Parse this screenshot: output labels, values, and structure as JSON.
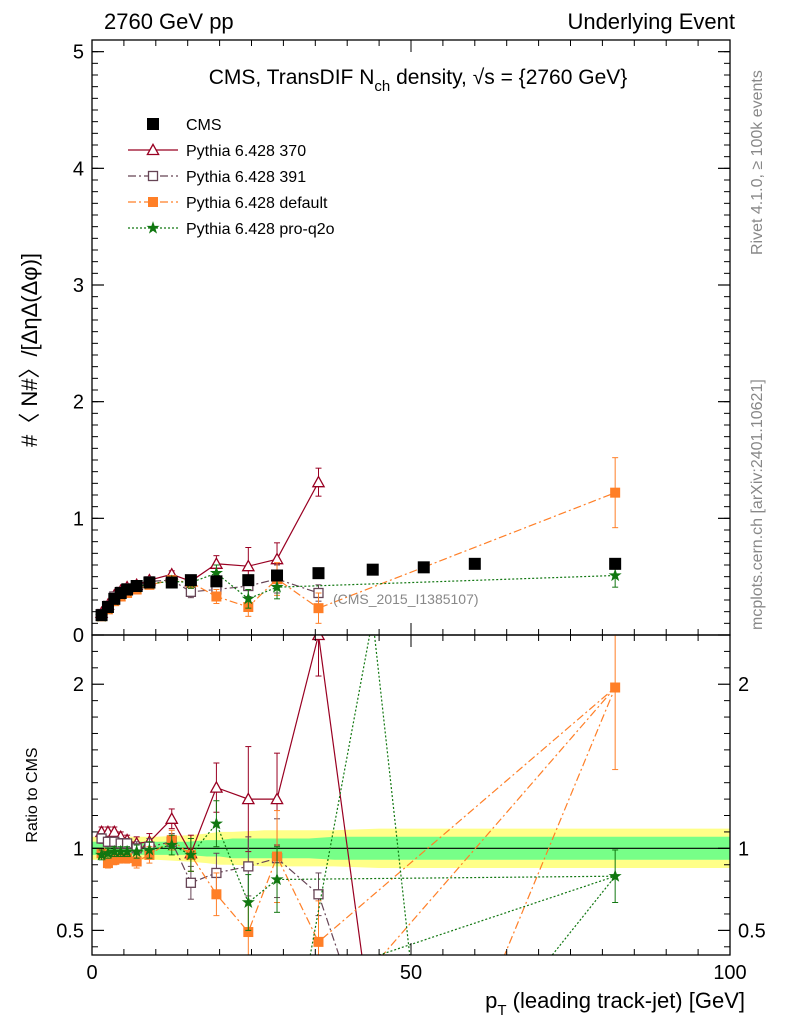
{
  "header": {
    "left": "2760 GeV pp",
    "right": "Underlying Event"
  },
  "side_labels": {
    "rivet": "Rivet 4.1.0, ≥ 100k events",
    "mcplots": "mcplots.cern.ch [arXiv:2401.10621]"
  },
  "chart_data": {
    "type": "scatter",
    "title_parts": {
      "pre": "CMS, TransDIF N",
      "sub": "ch",
      "mid": " density, ",
      "sqrt": "√s",
      "post": " = {2760 GeV}"
    },
    "xlabel_main": "p",
    "xlabel_sub": "T",
    "xlabel_rest": " (leading track-jet) [GeV]",
    "ylabel": "#〈 N#〉/[ΔηΔ(Δφ)]",
    "ratio_ylabel": "Ratio to CMS",
    "reference_label": "(CMS_2015_I1385107)",
    "xlim": [
      0,
      100
    ],
    "ylim": [
      0,
      5.1
    ],
    "ratio_ylim": [
      0.35,
      2.3
    ],
    "x_ticks": [
      0,
      50,
      100
    ],
    "y_ticks": [
      0,
      1,
      2,
      3,
      4,
      5
    ],
    "ratio_ticks": [
      0.5,
      1,
      2
    ],
    "ratio_tick_labels": [
      "0.5",
      "1",
      "2"
    ],
    "legend": [
      {
        "name": "CMS",
        "marker": "square-filled",
        "color": "#000000",
        "dash": ""
      },
      {
        "name": "Pythia 6.428 370",
        "marker": "triangle-open",
        "color": "#990022",
        "dash": ""
      },
      {
        "name": "Pythia 6.428 391",
        "marker": "square-open",
        "color": "#664455",
        "dash": "8,3,2,3"
      },
      {
        "name": "Pythia 6.428 default",
        "marker": "square-filled",
        "color": "#ff7f27",
        "dash": "8,3,2,3"
      },
      {
        "name": "Pythia 6.428 pro-q2o",
        "marker": "star",
        "color": "#117711",
        "dash": "2,2"
      }
    ],
    "data": {
      "x": [
        1.5,
        2.5,
        3.5,
        4.5,
        5.5,
        7.0,
        9.0,
        12.5,
        15.5,
        19.5,
        24.5,
        29.0,
        35.5,
        44.0,
        52.0,
        60.0,
        82.0
      ],
      "y": [
        0.17,
        0.24,
        0.31,
        0.36,
        0.39,
        0.42,
        0.45,
        0.45,
        0.47,
        0.46,
        0.47,
        0.51,
        0.53,
        0.56,
        0.58,
        0.61,
        0.61
      ],
      "err": [
        0.01,
        0.01,
        0.01,
        0.01,
        0.01,
        0.01,
        0.01,
        0.01,
        0.01,
        0.01,
        0.01,
        0.02,
        0.02,
        0.02,
        0.02,
        0.02,
        0.02
      ]
    },
    "series": [
      {
        "name": "Pythia 6.428 370",
        "color": "#990022",
        "x": [
          1.5,
          2.5,
          3.5,
          4.5,
          5.5,
          7.0,
          9.0,
          12.5,
          15.5,
          19.5,
          24.5,
          29.0,
          35.5
        ],
        "y": [
          0.19,
          0.26,
          0.34,
          0.38,
          0.41,
          0.43,
          0.47,
          0.52,
          0.46,
          0.61,
          0.59,
          0.65,
          1.31
        ],
        "err": [
          0.01,
          0.01,
          0.01,
          0.01,
          0.01,
          0.02,
          0.02,
          0.03,
          0.05,
          0.07,
          0.16,
          0.14,
          0.12
        ],
        "ratio": [
          1.1,
          1.1,
          1.1,
          1.07,
          1.05,
          1.03,
          1.04,
          1.18,
          0.97,
          1.37,
          1.3,
          1.3,
          2.3
        ],
        "ratio_err": [
          0.03,
          0.03,
          0.03,
          0.03,
          0.03,
          0.04,
          0.05,
          0.06,
          0.11,
          0.15,
          0.32,
          0.28,
          0.25
        ],
        "ratio_tail": [
          [
            35.5,
            2.3
          ],
          [
            43.0,
            0.15
          ]
        ]
      },
      {
        "name": "Pythia 6.428 391",
        "color": "#664455",
        "x": [
          1.5,
          2.5,
          3.5,
          4.5,
          5.5,
          7.0,
          9.0,
          12.5,
          15.5,
          19.5,
          24.5,
          29.0,
          35.5
        ],
        "y": [
          0.18,
          0.25,
          0.33,
          0.37,
          0.4,
          0.42,
          0.46,
          0.47,
          0.37,
          0.39,
          0.42,
          0.48,
          0.36
        ],
        "err": [
          0.01,
          0.01,
          0.01,
          0.01,
          0.01,
          0.02,
          0.02,
          0.02,
          0.05,
          0.06,
          0.09,
          0.12,
          0.07
        ],
        "ratio": [
          1.06,
          1.04,
          1.04,
          1.03,
          1.03,
          1.0,
          1.01,
          1.04,
          0.79,
          0.85,
          0.89,
          0.94,
          0.72
        ],
        "ratio_err": [
          0.03,
          0.03,
          0.03,
          0.03,
          0.03,
          0.04,
          0.05,
          0.05,
          0.1,
          0.12,
          0.18,
          0.24,
          0.13
        ],
        "ratio_tail": [
          [
            35.5,
            0.72
          ],
          [
            40.0,
            0.2
          ]
        ]
      },
      {
        "name": "Pythia 6.428 default",
        "color": "#ff7f27",
        "x": [
          1.5,
          2.5,
          3.5,
          4.5,
          5.5,
          7.0,
          9.0,
          12.5,
          15.5,
          19.5,
          24.5,
          29.0,
          35.5,
          82.0
        ],
        "y": [
          0.16,
          0.22,
          0.29,
          0.33,
          0.36,
          0.39,
          0.43,
          0.47,
          0.45,
          0.33,
          0.24,
          0.48,
          0.23,
          1.22
        ],
        "err": [
          0.01,
          0.01,
          0.01,
          0.01,
          0.01,
          0.02,
          0.02,
          0.03,
          0.05,
          0.06,
          0.08,
          0.14,
          0.13,
          0.3
        ],
        "ratio": [
          0.97,
          0.91,
          0.93,
          0.94,
          0.94,
          0.92,
          0.96,
          1.05,
          0.96,
          0.72,
          0.49,
          0.95,
          0.43,
          1.98
        ],
        "ratio_err": [
          0.03,
          0.03,
          0.03,
          0.03,
          0.03,
          0.04,
          0.05,
          0.06,
          0.1,
          0.13,
          0.17,
          0.28,
          0.25,
          0.5
        ],
        "ratio_tail": [
          [
            35.5,
            0.43
          ],
          [
            40.0,
            0.1
          ],
          [
            62.0,
            0.1
          ],
          [
            82.0,
            1.98
          ]
        ]
      },
      {
        "name": "Pythia 6.428 pro-q2o",
        "color": "#117711",
        "x": [
          1.5,
          2.5,
          3.5,
          4.5,
          5.5,
          7.0,
          9.0,
          12.5,
          15.5,
          19.5,
          24.5,
          29.0,
          82.0
        ],
        "y": [
          0.16,
          0.23,
          0.3,
          0.35,
          0.38,
          0.41,
          0.44,
          0.46,
          0.45,
          0.53,
          0.31,
          0.41,
          0.51
        ],
        "err": [
          0.01,
          0.01,
          0.01,
          0.01,
          0.01,
          0.02,
          0.02,
          0.03,
          0.05,
          0.07,
          0.08,
          0.1,
          0.1
        ],
        "ratio": [
          0.96,
          0.97,
          0.98,
          0.98,
          0.98,
          0.98,
          0.99,
          1.02,
          0.96,
          1.15,
          0.67,
          0.81,
          0.83
        ],
        "ratio_err": [
          0.03,
          0.03,
          0.03,
          0.03,
          0.03,
          0.04,
          0.05,
          0.06,
          0.1,
          0.14,
          0.17,
          0.2,
          0.16
        ],
        "ratio_tail": [
          [
            29.0,
            0.81
          ],
          [
            33.5,
            0.2
          ],
          [
            44.0,
            2.4
          ],
          [
            50.5,
            0.1
          ],
          [
            67.0,
            0.1
          ],
          [
            82.0,
            0.83
          ]
        ]
      }
    ],
    "band": {
      "x": [
        0,
        1,
        2,
        3,
        5,
        8,
        10,
        15,
        18,
        20,
        22,
        27,
        30,
        34,
        38,
        45,
        55,
        65,
        75,
        85,
        100
      ],
      "inner": [
        0.04,
        0.04,
        0.04,
        0.04,
        0.04,
        0.04,
        0.04,
        0.04,
        0.05,
        0.05,
        0.06,
        0.06,
        0.06,
        0.06,
        0.07,
        0.07,
        0.07,
        0.07,
        0.07,
        0.07,
        0.07
      ],
      "outer": [
        0.07,
        0.07,
        0.07,
        0.07,
        0.07,
        0.07,
        0.07,
        0.08,
        0.09,
        0.1,
        0.1,
        0.11,
        0.11,
        0.11,
        0.11,
        0.12,
        0.12,
        0.12,
        0.12,
        0.12,
        0.12
      ],
      "inner_color": "#77ff88",
      "outer_color": "#ffff88"
    }
  }
}
